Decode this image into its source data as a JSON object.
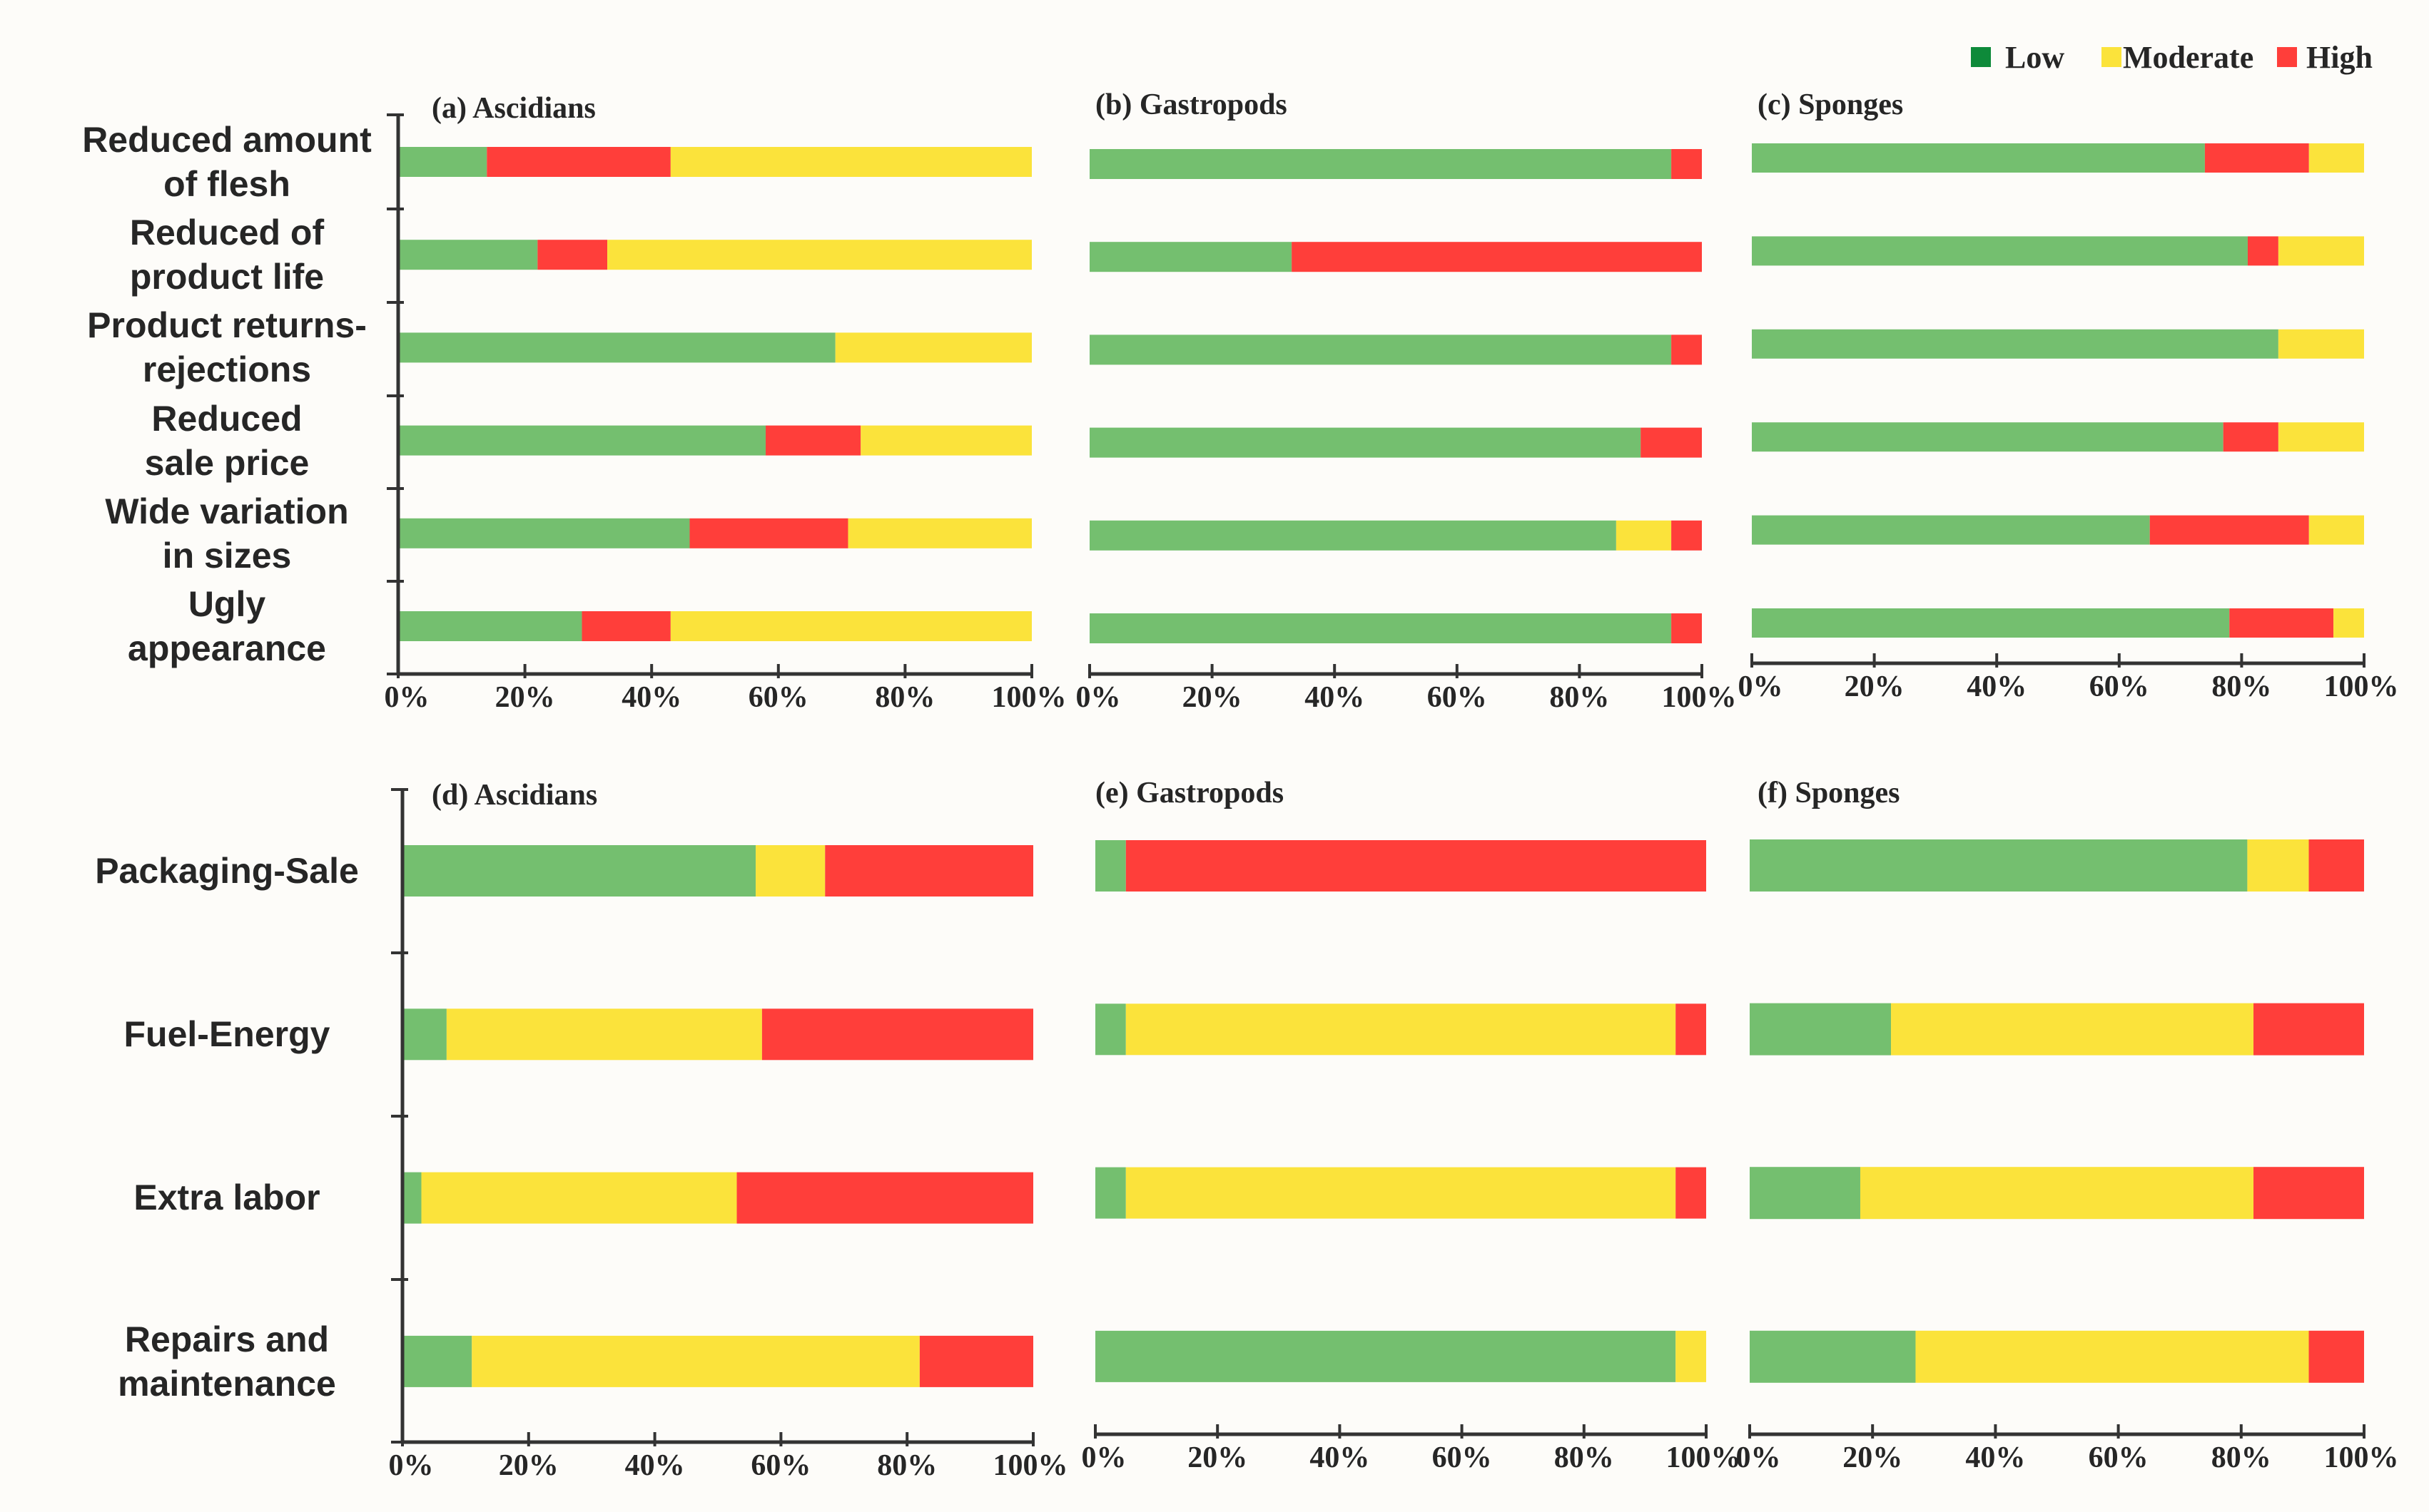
{
  "colors": {
    "low_bar": "#74bf6f",
    "low_legend": "#0e8a3a",
    "moderate": "#fbe33b",
    "high": "#ff3e3a",
    "axis": "#333333",
    "background": "#fdfcf9"
  },
  "legend": {
    "items": [
      {
        "key": "low",
        "label": "Low"
      },
      {
        "key": "moderate",
        "label": "Moderate"
      },
      {
        "key": "high",
        "label": "High"
      }
    ]
  },
  "row_labels": {
    "top": [
      [
        "Reduced amount",
        "of flesh"
      ],
      [
        "Reduced of",
        "product life"
      ],
      [
        "Product returns-",
        "rejections"
      ],
      [
        "Reduced",
        "sale price"
      ],
      [
        "Wide variation",
        "in sizes"
      ],
      [
        "Ugly",
        "appearance"
      ]
    ],
    "bottom": [
      [
        "Packaging-Sale"
      ],
      [
        "Fuel-Energy"
      ],
      [
        "Extra labor"
      ],
      [
        "Repairs and",
        "maintenance"
      ]
    ]
  },
  "chart_data": [
    {
      "type": "bar",
      "orientation": "horizontal-stacked-100",
      "title": "(a) Ascidians",
      "categories": [
        "Reduced amount of flesh",
        "Reduced of product life",
        "Product returns-rejections",
        "Reduced sale price",
        "Wide variation in sizes",
        "Ugly appearance"
      ],
      "stack_order": [
        "low",
        "high",
        "moderate"
      ],
      "series": [
        {
          "name": "Low",
          "key": "low",
          "values": [
            14,
            22,
            69,
            58,
            46,
            29
          ]
        },
        {
          "name": "Moderate",
          "key": "moderate",
          "values": [
            57,
            67,
            31,
            27,
            29,
            57
          ]
        },
        {
          "name": "High",
          "key": "high",
          "values": [
            29,
            11,
            0,
            15,
            25,
            14
          ]
        }
      ],
      "xlim": [
        0,
        100
      ],
      "xticks": [
        "0%",
        "20%",
        "40%",
        "60%",
        "80%",
        "100%"
      ]
    },
    {
      "type": "bar",
      "orientation": "horizontal-stacked-100",
      "title": "(b) Gastropods",
      "categories": [
        "Reduced amount of flesh",
        "Reduced of product life",
        "Product returns-rejections",
        "Reduced sale price",
        "Wide variation in sizes",
        "Ugly appearance"
      ],
      "stack_order": [
        "low",
        "moderate",
        "high"
      ],
      "series": [
        {
          "name": "Low",
          "key": "low",
          "values": [
            95,
            33,
            95,
            90,
            86,
            95
          ]
        },
        {
          "name": "Moderate",
          "key": "moderate",
          "values": [
            0,
            0,
            0,
            0,
            9,
            0
          ]
        },
        {
          "name": "High",
          "key": "high",
          "values": [
            5,
            67,
            5,
            10,
            5,
            5
          ]
        }
      ],
      "xlim": [
        0,
        100
      ],
      "xticks": [
        "0%",
        "20%",
        "40%",
        "60%",
        "80%",
        "100%"
      ]
    },
    {
      "type": "bar",
      "orientation": "horizontal-stacked-100",
      "title": "(c) Sponges",
      "categories": [
        "Reduced amount of flesh",
        "Reduced of product life",
        "Product returns-rejections",
        "Reduced sale price",
        "Wide variation in sizes",
        "Ugly appearance"
      ],
      "stack_order": [
        "low",
        "high",
        "moderate"
      ],
      "series": [
        {
          "name": "Low",
          "key": "low",
          "values": [
            74,
            81,
            86,
            77,
            65,
            78
          ]
        },
        {
          "name": "Moderate",
          "key": "moderate",
          "values": [
            9,
            14,
            14,
            14,
            9,
            5
          ]
        },
        {
          "name": "High",
          "key": "high",
          "values": [
            17,
            5,
            0,
            9,
            26,
            17
          ]
        }
      ],
      "xlim": [
        0,
        100
      ],
      "xticks": [
        "0%",
        "20%",
        "40%",
        "60%",
        "80%",
        "100%"
      ]
    },
    {
      "type": "bar",
      "orientation": "horizontal-stacked-100",
      "title": "(d) Ascidians",
      "categories": [
        "Packaging-Sale",
        "Fuel-Energy",
        "Extra labor",
        "Repairs and maintenance"
      ],
      "stack_order": [
        "low",
        "moderate",
        "high"
      ],
      "series": [
        {
          "name": "Low",
          "key": "low",
          "values": [
            56,
            7,
            3,
            11
          ]
        },
        {
          "name": "Moderate",
          "key": "moderate",
          "values": [
            11,
            50,
            50,
            71
          ]
        },
        {
          "name": "High",
          "key": "high",
          "values": [
            33,
            43,
            47,
            18
          ]
        }
      ],
      "xlim": [
        0,
        100
      ],
      "xticks": [
        "0%",
        "20%",
        "40%",
        "60%",
        "80%",
        "100%"
      ]
    },
    {
      "type": "bar",
      "orientation": "horizontal-stacked-100",
      "title": "(e) Gastropods",
      "categories": [
        "Packaging-Sale",
        "Fuel-Energy",
        "Extra labor",
        "Repairs and maintenance"
      ],
      "stack_order": [
        "low",
        "moderate",
        "high"
      ],
      "series": [
        {
          "name": "Low",
          "key": "low",
          "values": [
            5,
            5,
            5,
            95
          ]
        },
        {
          "name": "Moderate",
          "key": "moderate",
          "values": [
            0,
            90,
            90,
            5
          ]
        },
        {
          "name": "High",
          "key": "high",
          "values": [
            95,
            5,
            5,
            0
          ]
        }
      ],
      "xlim": [
        0,
        100
      ],
      "xticks": [
        "0%",
        "20%",
        "40%",
        "60%",
        "80%",
        "100%"
      ]
    },
    {
      "type": "bar",
      "orientation": "horizontal-stacked-100",
      "title": "(f) Sponges",
      "categories": [
        "Packaging-Sale",
        "Fuel-Energy",
        "Extra labor",
        "Repairs and maintenance"
      ],
      "stack_order": [
        "low",
        "moderate",
        "high"
      ],
      "series": [
        {
          "name": "Low",
          "key": "low",
          "values": [
            81,
            23,
            18,
            27
          ]
        },
        {
          "name": "Moderate",
          "key": "moderate",
          "values": [
            10,
            59,
            64,
            64
          ]
        },
        {
          "name": "High",
          "key": "high",
          "values": [
            9,
            18,
            18,
            9
          ]
        }
      ],
      "xlim": [
        0,
        100
      ],
      "xticks": [
        "0%",
        "20%",
        "40%",
        "60%",
        "80%",
        "100%"
      ]
    }
  ]
}
